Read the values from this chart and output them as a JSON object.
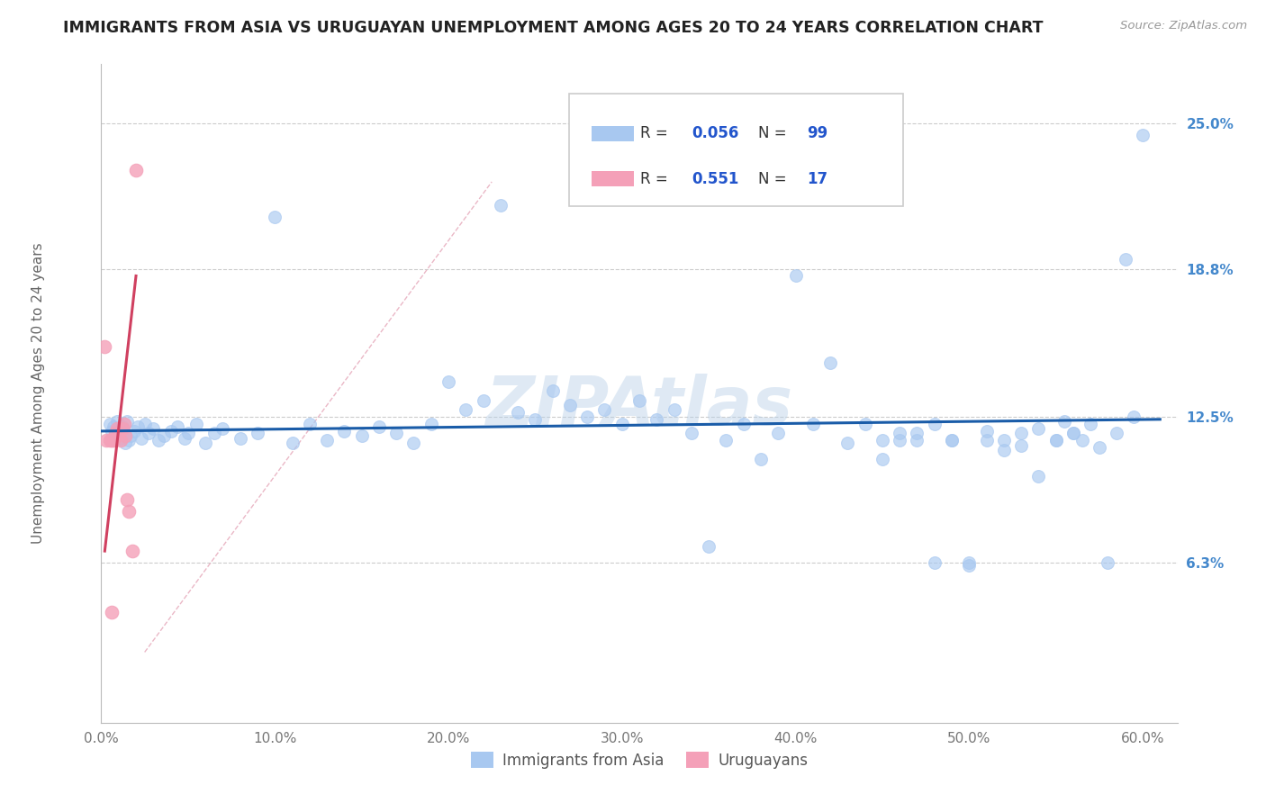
{
  "title": "IMMIGRANTS FROM ASIA VS URUGUAYAN UNEMPLOYMENT AMONG AGES 20 TO 24 YEARS CORRELATION CHART",
  "source": "Source: ZipAtlas.com",
  "ylabel": "Unemployment Among Ages 20 to 24 years",
  "xlim": [
    0.0,
    0.62
  ],
  "ylim": [
    -0.005,
    0.275
  ],
  "xticks": [
    0.0,
    0.1,
    0.2,
    0.3,
    0.4,
    0.5,
    0.6
  ],
  "xticklabels": [
    "0.0%",
    "10.0%",
    "20.0%",
    "30.0%",
    "40.0%",
    "50.0%",
    "60.0%"
  ],
  "ytick_positions": [
    0.063,
    0.125,
    0.188,
    0.25
  ],
  "ytick_labels": [
    "6.3%",
    "12.5%",
    "18.8%",
    "25.0%"
  ],
  "r_blue": "0.056",
  "n_blue": "99",
  "r_pink": "0.551",
  "n_pink": "17",
  "legend_label_blue": "Immigrants from Asia",
  "legend_label_pink": "Uruguayans",
  "blue_scatter_color": "#A8C8F0",
  "pink_scatter_color": "#F4A0B8",
  "blue_line_color": "#1A5CA8",
  "pink_line_color": "#D04060",
  "pink_dash_color": "#E8B0C0",
  "grid_color": "#CCCCCC",
  "title_color": "#222222",
  "watermark": "ZIPAtlas",
  "blue_line_x": [
    0.0,
    0.61
  ],
  "blue_line_y": [
    0.119,
    0.124
  ],
  "pink_line_x": [
    0.002,
    0.02
  ],
  "pink_line_y": [
    0.068,
    0.185
  ],
  "blue_x": [
    0.005,
    0.006,
    0.007,
    0.008,
    0.009,
    0.01,
    0.011,
    0.012,
    0.013,
    0.014,
    0.015,
    0.016,
    0.017,
    0.019,
    0.021,
    0.023,
    0.025,
    0.027,
    0.03,
    0.033,
    0.036,
    0.04,
    0.044,
    0.048,
    0.05,
    0.055,
    0.06,
    0.065,
    0.07,
    0.08,
    0.09,
    0.1,
    0.11,
    0.12,
    0.13,
    0.14,
    0.15,
    0.16,
    0.17,
    0.18,
    0.19,
    0.2,
    0.21,
    0.22,
    0.23,
    0.24,
    0.25,
    0.26,
    0.27,
    0.28,
    0.29,
    0.3,
    0.31,
    0.32,
    0.33,
    0.34,
    0.35,
    0.36,
    0.37,
    0.38,
    0.39,
    0.4,
    0.41,
    0.42,
    0.43,
    0.44,
    0.45,
    0.46,
    0.47,
    0.48,
    0.49,
    0.5,
    0.51,
    0.52,
    0.53,
    0.54,
    0.55,
    0.555,
    0.56,
    0.565,
    0.57,
    0.575,
    0.58,
    0.585,
    0.59,
    0.595,
    0.6,
    0.56,
    0.55,
    0.54,
    0.53,
    0.52,
    0.51,
    0.5,
    0.49,
    0.48,
    0.47,
    0.46,
    0.45
  ],
  "blue_y": [
    0.122,
    0.119,
    0.121,
    0.118,
    0.123,
    0.12,
    0.116,
    0.121,
    0.118,
    0.114,
    0.123,
    0.115,
    0.117,
    0.119,
    0.121,
    0.116,
    0.122,
    0.118,
    0.12,
    0.115,
    0.117,
    0.119,
    0.121,
    0.116,
    0.118,
    0.122,
    0.114,
    0.118,
    0.12,
    0.116,
    0.118,
    0.21,
    0.114,
    0.122,
    0.115,
    0.119,
    0.117,
    0.121,
    0.118,
    0.114,
    0.122,
    0.14,
    0.128,
    0.132,
    0.215,
    0.127,
    0.124,
    0.136,
    0.13,
    0.125,
    0.128,
    0.122,
    0.132,
    0.124,
    0.128,
    0.118,
    0.07,
    0.115,
    0.122,
    0.107,
    0.118,
    0.185,
    0.122,
    0.148,
    0.114,
    0.122,
    0.107,
    0.115,
    0.118,
    0.122,
    0.115,
    0.063,
    0.119,
    0.115,
    0.113,
    0.12,
    0.115,
    0.123,
    0.118,
    0.115,
    0.122,
    0.112,
    0.063,
    0.118,
    0.192,
    0.125,
    0.245,
    0.118,
    0.115,
    0.1,
    0.118,
    0.111,
    0.115,
    0.062,
    0.115,
    0.063,
    0.115,
    0.118,
    0.115
  ],
  "pink_x": [
    0.002,
    0.003,
    0.005,
    0.006,
    0.007,
    0.008,
    0.009,
    0.01,
    0.011,
    0.012,
    0.013,
    0.014,
    0.015,
    0.016,
    0.018,
    0.02,
    0.006
  ],
  "pink_y": [
    0.155,
    0.115,
    0.115,
    0.115,
    0.115,
    0.118,
    0.12,
    0.118,
    0.115,
    0.12,
    0.122,
    0.117,
    0.09,
    0.085,
    0.068,
    0.23,
    0.042
  ]
}
